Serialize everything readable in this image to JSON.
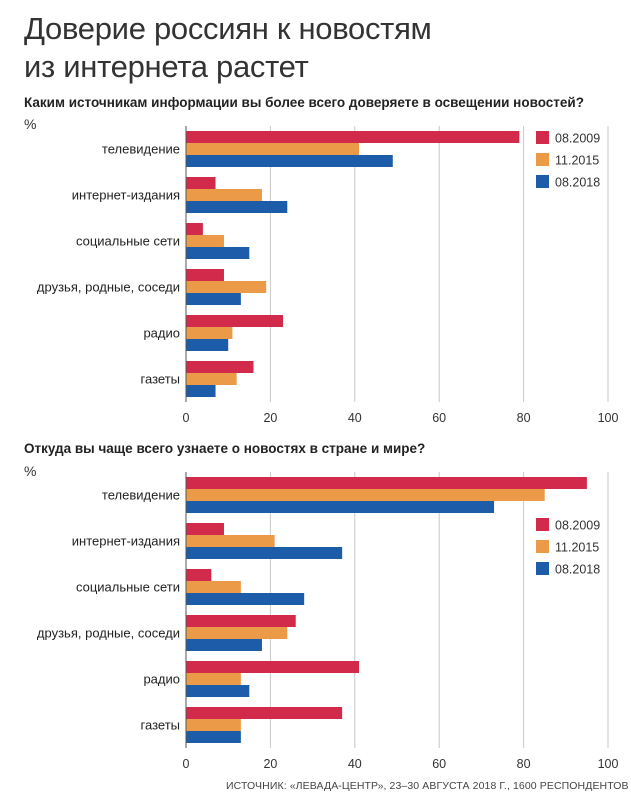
{
  "title_line1": "Доверие россиян к новостям",
  "title_line2": "из интернета растет",
  "source": "ИСТОЧНИК: «ЛЕВАДА-ЦЕНТР», 23–30 АВГУСТА 2018 Г., 1600 РЕСПОНДЕНТОВ",
  "colors": {
    "s2009": "#d22a4a",
    "s2015": "#eb9a48",
    "s2018": "#1c5ca8"
  },
  "chart_data": [
    {
      "type": "bar",
      "orientation": "horizontal",
      "title": "Каким источникам информации вы более всего доверяете в освещении новостей?",
      "unit_label": "%",
      "categories": [
        "телевидение",
        "интернет-издания",
        "социальные сети",
        "друзья, родные, соседи",
        "радио",
        "газеты"
      ],
      "series": [
        {
          "name": "08.2009",
          "values": [
            79,
            7,
            4,
            9,
            23,
            16
          ]
        },
        {
          "name": "11.2015",
          "values": [
            41,
            18,
            9,
            19,
            11,
            12
          ]
        },
        {
          "name": "08.2018",
          "values": [
            49,
            24,
            15,
            13,
            10,
            7
          ]
        }
      ],
      "xlim": [
        0,
        100
      ],
      "xticks": [
        0,
        20,
        40,
        60,
        80,
        100
      ],
      "grid": true,
      "legend": "top-right"
    },
    {
      "type": "bar",
      "orientation": "horizontal",
      "title": "Откуда вы чаще всего узнаете о новостях в стране и мире?",
      "unit_label": "%",
      "categories": [
        "телевидение",
        "интернет-издания",
        "социальные сети",
        "друзья, родные, соседи",
        "радио",
        "газеты"
      ],
      "series": [
        {
          "name": "08.2009",
          "values": [
            95,
            9,
            6,
            26,
            41,
            37
          ]
        },
        {
          "name": "11.2015",
          "values": [
            85,
            21,
            13,
            24,
            13,
            13
          ]
        },
        {
          "name": "08.2018",
          "values": [
            73,
            37,
            28,
            18,
            15,
            13
          ]
        }
      ],
      "xlim": [
        0,
        100
      ],
      "xticks": [
        0,
        20,
        40,
        60,
        80,
        100
      ],
      "grid": true,
      "legend": "right"
    }
  ]
}
